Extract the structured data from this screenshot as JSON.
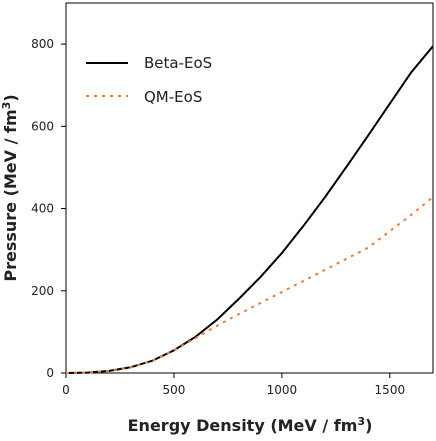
{
  "chart_data": {
    "type": "line",
    "xlabel": "Energy Density (MeV / fm",
    "xlabel_sup": "3",
    "xlabel_tail": ")",
    "ylabel": "Pressure (MeV / fm",
    "ylabel_sup": "3",
    "ylabel_tail": ")",
    "xlim": [
      0,
      1700
    ],
    "ylim": [
      0,
      900
    ],
    "xticks": [
      0,
      500,
      1000,
      1500
    ],
    "yticks": [
      0,
      200,
      400,
      600,
      800
    ],
    "grid": false,
    "legend_position": "top-left",
    "series": [
      {
        "name": "Beta-EoS",
        "color": "#000000",
        "style": "solid",
        "x": [
          0,
          100,
          200,
          300,
          400,
          500,
          600,
          700,
          800,
          900,
          1000,
          1100,
          1200,
          1300,
          1400,
          1500,
          1600,
          1700
        ],
        "y": [
          0,
          1,
          5,
          14,
          30,
          55,
          88,
          130,
          180,
          233,
          292,
          358,
          428,
          502,
          578,
          655,
          732,
          795
        ]
      },
      {
        "name": "QM-EoS",
        "color": "#f07b3f",
        "style": "dotted",
        "x": [
          0,
          100,
          200,
          300,
          400,
          500,
          600,
          700,
          800,
          900,
          1000,
          1100,
          1200,
          1300,
          1400,
          1500,
          1600,
          1700
        ],
        "y": [
          0,
          1,
          5,
          14,
          30,
          55,
          85,
          115,
          143,
          170,
          197,
          224,
          251,
          278,
          305,
          345,
          385,
          428
        ]
      }
    ]
  }
}
